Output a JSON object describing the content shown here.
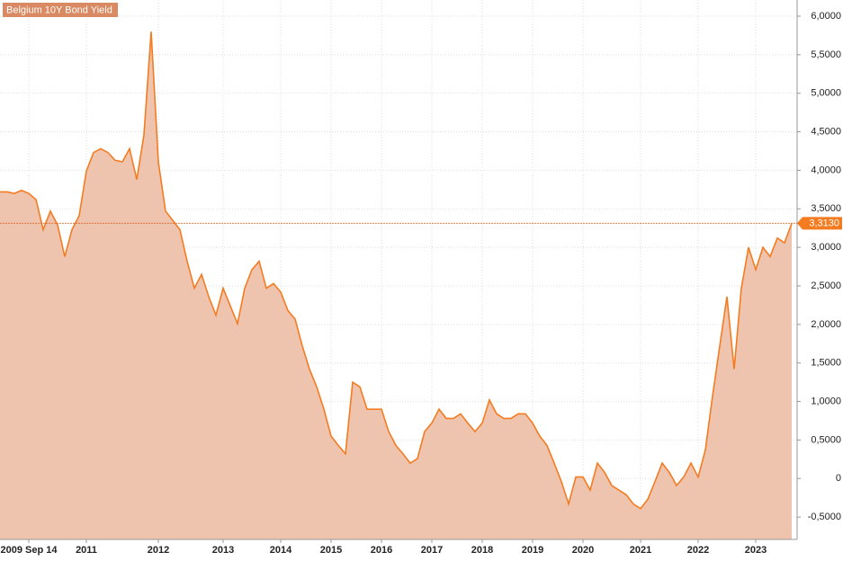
{
  "chart_data": {
    "type": "area",
    "title": "Belgium 10Y Bond Yield",
    "categories": [
      null,
      null,
      null,
      null,
      "2009 Sep 14",
      null,
      null,
      null,
      null,
      null,
      null,
      null,
      "2011",
      null,
      null,
      null,
      null,
      null,
      null,
      null,
      null,
      null,
      "2012",
      null,
      null,
      null,
      null,
      null,
      null,
      null,
      null,
      "2013",
      null,
      null,
      null,
      null,
      null,
      null,
      null,
      "2014",
      null,
      null,
      null,
      null,
      null,
      null,
      "2015",
      null,
      null,
      null,
      null,
      null,
      null,
      "2016",
      null,
      null,
      null,
      null,
      null,
      null,
      "2017",
      null,
      null,
      null,
      null,
      null,
      null,
      "2018",
      null,
      null,
      null,
      null,
      null,
      null,
      "2019",
      null,
      null,
      null,
      null,
      null,
      null,
      "2020",
      null,
      null,
      null,
      null,
      null,
      null,
      null,
      "2021",
      null,
      null,
      null,
      null,
      null,
      null,
      null,
      "2022",
      null,
      null,
      null,
      null,
      null,
      null,
      null,
      "2023",
      null,
      null,
      null,
      null,
      null
    ],
    "values": [
      3.72,
      3.72,
      3.7,
      3.74,
      3.7,
      3.62,
      3.23,
      3.47,
      3.29,
      2.88,
      3.23,
      3.41,
      3.99,
      4.23,
      4.28,
      4.23,
      4.13,
      4.11,
      4.28,
      3.88,
      4.46,
      5.8,
      4.11,
      3.47,
      3.35,
      3.23,
      2.82,
      2.47,
      2.65,
      2.36,
      2.12,
      2.47,
      2.24,
      2.01,
      2.47,
      2.71,
      2.82,
      2.47,
      2.53,
      2.42,
      2.18,
      2.07,
      1.72,
      1.42,
      1.19,
      0.9,
      0.55,
      0.43,
      0.32,
      1.25,
      1.19,
      0.9,
      0.9,
      0.9,
      0.61,
      0.43,
      0.32,
      0.2,
      0.26,
      0.61,
      0.72,
      0.9,
      0.78,
      0.78,
      0.84,
      0.72,
      0.61,
      0.72,
      1.02,
      0.84,
      0.78,
      0.78,
      0.84,
      0.84,
      0.72,
      0.55,
      0.43,
      0.2,
      -0.04,
      -0.33,
      0.02,
      0.02,
      -0.15,
      0.2,
      0.08,
      -0.09,
      -0.15,
      -0.21,
      -0.33,
      -0.39,
      -0.27,
      -0.04,
      0.2,
      0.08,
      -0.09,
      0.02,
      0.2,
      0.02,
      0.37,
      1.07,
      1.72,
      2.36,
      1.42,
      2.47,
      3.0,
      2.71,
      3.0,
      2.88,
      3.12,
      3.06,
      3.31
    ],
    "color": "#f47b20",
    "fill_color": "#efc4ae",
    "ylim": [
      -0.79,
      6.21
    ],
    "yticks": [
      {
        "value": -0.5,
        "label": "-0,5000"
      },
      {
        "value": 0,
        "label": "0"
      },
      {
        "value": 0.5,
        "label": "0,5000"
      },
      {
        "value": 1,
        "label": "1,0000"
      },
      {
        "value": 1.5,
        "label": "1,5000"
      },
      {
        "value": 2,
        "label": "2,0000"
      },
      {
        "value": 2.5,
        "label": "2,5000"
      },
      {
        "value": 3,
        "label": "3,0000"
      },
      {
        "value": 3.5,
        "label": "3,5000"
      },
      {
        "value": 4,
        "label": "4,0000"
      },
      {
        "value": 4.5,
        "label": "4,5000"
      },
      {
        "value": 5,
        "label": "5,0000"
      },
      {
        "value": 5.5,
        "label": "5,5000"
      },
      {
        "value": 6,
        "label": "6,0000"
      }
    ],
    "last_value": {
      "value": 3.313,
      "label": "3,3130"
    },
    "grid": true
  }
}
